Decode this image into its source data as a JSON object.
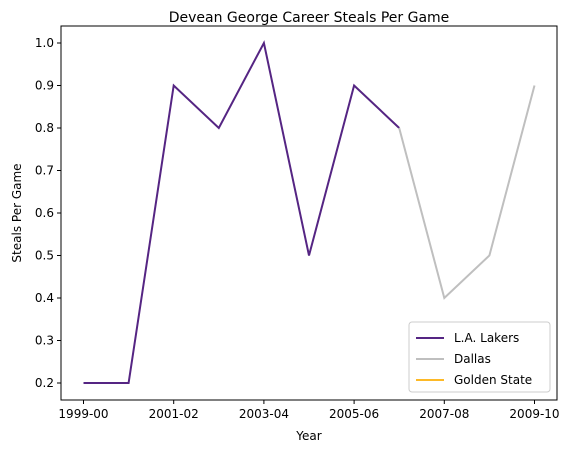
{
  "chart_data": {
    "type": "line",
    "title": "Devean George Career Steals Per Game",
    "xlabel": "Year",
    "ylabel": "Steals Per Game",
    "x": [
      "1999-00",
      "2000-01",
      "2001-02",
      "2002-03",
      "2003-04",
      "2004-05",
      "2005-06",
      "2006-07",
      "2007-08",
      "2008-09",
      "2009-10"
    ],
    "x_tick_labels": [
      "1999-00",
      "2001-02",
      "2003-04",
      "2005-06",
      "2007-08",
      "2009-10"
    ],
    "y_ticks": [
      "0.2",
      "0.3",
      "0.4",
      "0.5",
      "0.6",
      "0.7",
      "0.8",
      "0.9",
      "1.0"
    ],
    "ylim": [
      0.16,
      1.04
    ],
    "legend_position": "lower right",
    "grid": false,
    "series": [
      {
        "name": "L.A. Lakers",
        "color": "#552583",
        "x": [
          "1999-00",
          "2000-01",
          "2001-02",
          "2002-03",
          "2003-04",
          "2004-05",
          "2005-06",
          "2006-07"
        ],
        "values": [
          0.2,
          0.2,
          0.9,
          0.8,
          1.0,
          0.5,
          0.9,
          0.8
        ]
      },
      {
        "name": "Dallas",
        "color": "#bfbfbf",
        "x": [
          "2006-07",
          "2007-08",
          "2008-09",
          "2009-10"
        ],
        "values": [
          0.8,
          0.4,
          0.5,
          0.9
        ]
      },
      {
        "name": "Golden State",
        "color": "#fdb927",
        "x": [],
        "values": []
      }
    ]
  }
}
